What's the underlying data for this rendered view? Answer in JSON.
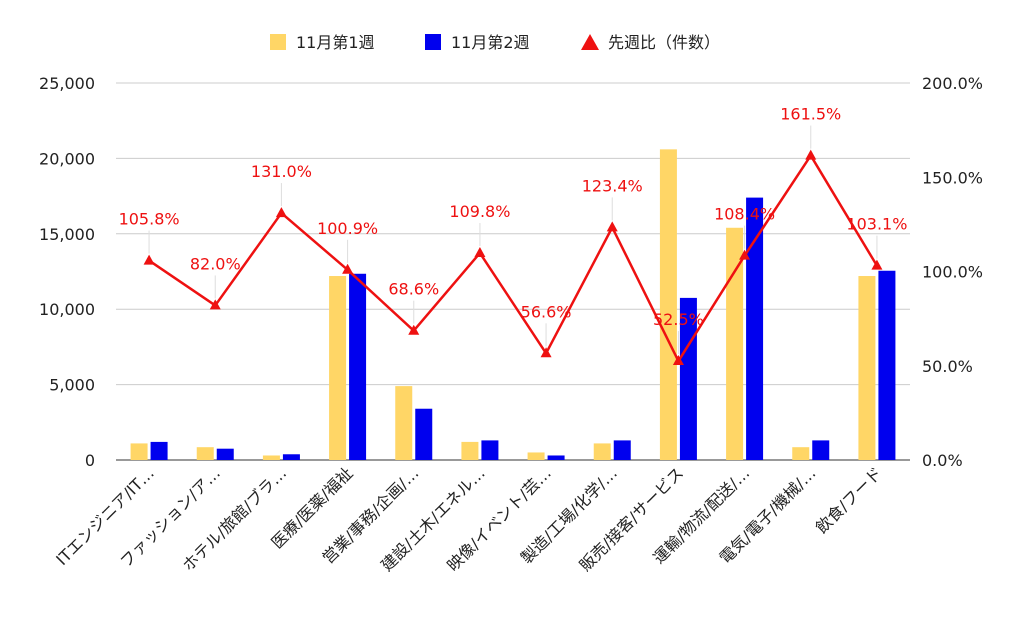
{
  "chart_data": {
    "type": "bar",
    "categories": [
      "ITエンジニア/IT…",
      "ファッション/ア…",
      "ホテル/旅館/ブラ…",
      "医療/医薬/福祉",
      "営業/事務/企画/…",
      "建設/土木/エネル…",
      "映像/イベント/芸…",
      "製造/工場/化学/…",
      "販売/接客/サービス",
      "運輸/物流/配送/…",
      "電気/電子/機械/…",
      "飲食/フード"
    ],
    "series": [
      {
        "name": "11月第1週",
        "type": "bar",
        "axis": "left",
        "color": "#ffd666",
        "values": [
          1100,
          850,
          300,
          12200,
          4900,
          1200,
          500,
          1100,
          20600,
          15400,
          850,
          12200
        ]
      },
      {
        "name": "11月第2週",
        "type": "bar",
        "axis": "left",
        "color": "#0000ee",
        "values": [
          1200,
          750,
          380,
          12350,
          3400,
          1300,
          300,
          1300,
          10750,
          17400,
          1300,
          12550
        ]
      },
      {
        "name": "先週比（件数）",
        "type": "line",
        "axis": "right",
        "color": "#ee1111",
        "values": [
          105.8,
          82.0,
          131.0,
          100.9,
          68.6,
          109.8,
          56.6,
          123.4,
          52.5,
          108.4,
          161.5,
          103.1
        ],
        "labels": [
          "105.8%",
          "82.0%",
          "131.0%",
          "100.9%",
          "68.6%",
          "109.8%",
          "56.6%",
          "123.4%",
          "52.5%",
          "108.4%",
          "161.5%",
          "103.1%"
        ]
      }
    ],
    "left_axis": {
      "min": 0,
      "max": 25000,
      "ticks": [
        "0",
        "5,000",
        "10,000",
        "15,000",
        "20,000",
        "25,000"
      ]
    },
    "right_axis": {
      "min": 0,
      "max": 200,
      "ticks": [
        "0.0%",
        "50.0%",
        "100.0%",
        "150.0%",
        "200.0%"
      ]
    },
    "grid": true,
    "legend_position": "top"
  }
}
